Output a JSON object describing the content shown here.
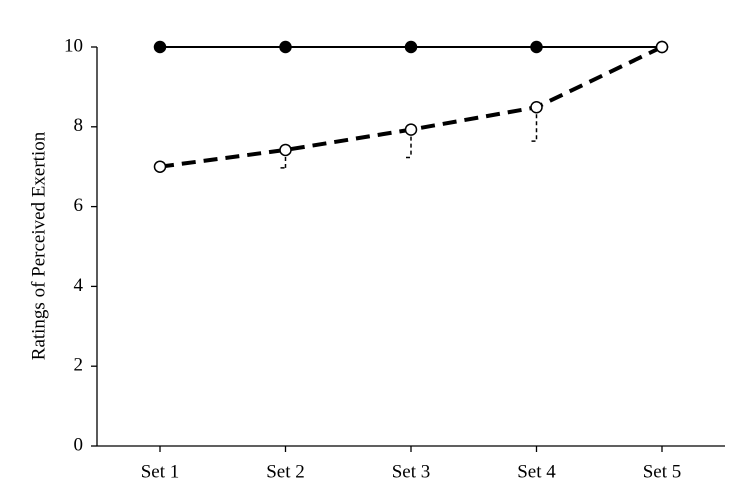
{
  "chart_data": {
    "type": "line",
    "y_label": "Ratings of Perceived Exertion",
    "categories": [
      "Set 1",
      "Set 2",
      "Set 3",
      "Set 4",
      "Set 5"
    ],
    "series": [
      {
        "color": "#000000",
        "dashed": false,
        "marker": "filled",
        "values": [
          10,
          10,
          10,
          10,
          10
        ]
      },
      {
        "color": "#000000",
        "dashed": true,
        "marker": "open",
        "values": [
          7,
          7.42,
          7.93,
          8.49,
          10
        ],
        "errors": [
          null,
          0.45,
          0.7,
          0.85,
          null
        ]
      }
    ],
    "ylim": [
      0,
      10
    ],
    "yticks": [
      0,
      2,
      4,
      6,
      8,
      10
    ],
    "grid": false
  }
}
